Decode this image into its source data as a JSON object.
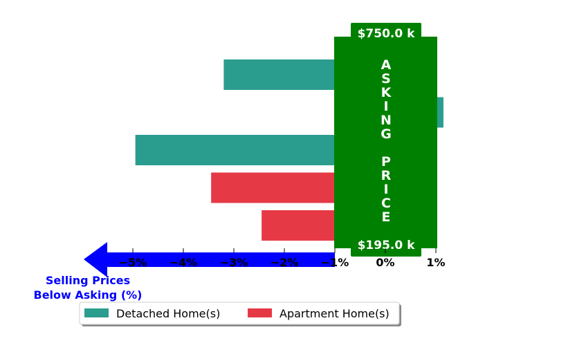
{
  "chart_data": {
    "type": "bar",
    "orientation": "horizontal",
    "xlim": [
      -6.5,
      1.2
    ],
    "x_ticks": [
      -5,
      -4,
      -3,
      -2,
      -1,
      0,
      1
    ],
    "x_tick_labels": [
      "−5%",
      "−4%",
      "−3%",
      "−2%",
      "−1%",
      "0%",
      "1%"
    ],
    "series": [
      {
        "name": "Detached Home(s)",
        "color": "#2a9d8f"
      },
      {
        "name": "Apartment Home(s)",
        "color": "#e63946"
      }
    ],
    "bars": [
      {
        "series": "Detached Home(s)",
        "value": -3.2
      },
      {
        "series": "Detached Home(s)",
        "value": 1.15
      },
      {
        "series": "Detached Home(s)",
        "value": -4.95
      },
      {
        "series": "Apartment Home(s)",
        "value": -3.45
      },
      {
        "series": "Apartment Home(s)",
        "value": -2.45
      }
    ],
    "asking_band": {
      "label": "ASKING PRICE",
      "top_label": "$750.0 k",
      "bottom_label": "$195.0 k",
      "color": "#008000",
      "x_range": [
        -1,
        1
      ]
    },
    "arrow_color": "#0000ff",
    "annotation_lines": [
      "Selling Prices",
      "Below Asking (%)"
    ],
    "legend_location": "bottom-center"
  }
}
